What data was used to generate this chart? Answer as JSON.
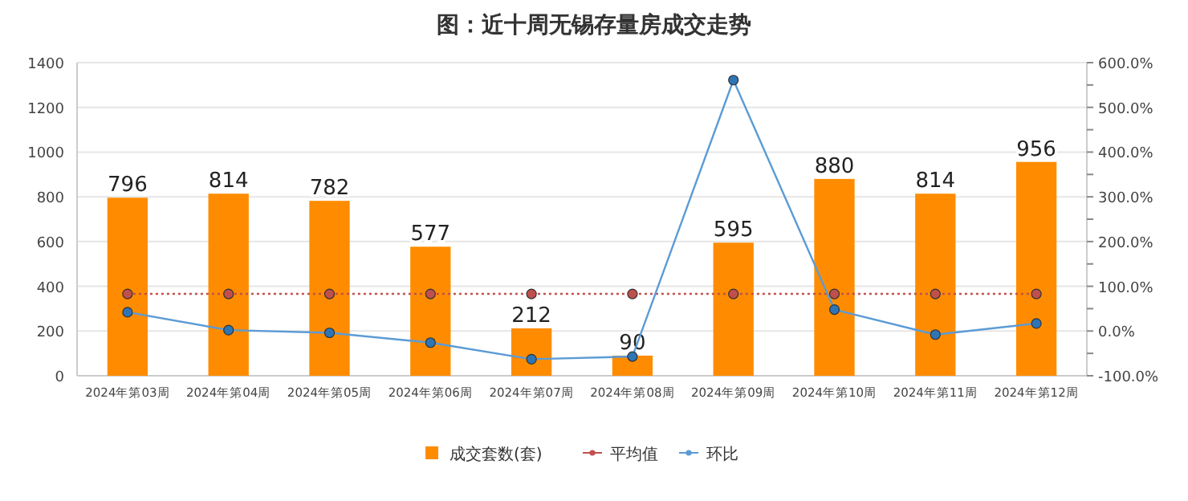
{
  "chart_data": {
    "type": "bar",
    "title": "图：近十周无锡存量房成交走势",
    "categories": [
      "2024年第03周",
      "2024年第04周",
      "2024年第05周",
      "2024年第06周",
      "2024年第07周",
      "2024年第08周",
      "2024年第09周",
      "2024年第10周",
      "2024年第11周",
      "2024年第12周"
    ],
    "series": [
      {
        "name": "成交套数(套)",
        "color": "#ff8c00",
        "values": [
          796,
          814,
          782,
          577,
          212,
          90,
          595,
          880,
          814,
          956
        ],
        "value_labels": [
          "796",
          "814",
          "782",
          "577",
          "212",
          "90",
          "595",
          "880",
          "814",
          "956"
        ]
      },
      {
        "name": "平均值",
        "type": "line",
        "axis": "y2",
        "color": "#c0504d",
        "line_style": "dotted",
        "marker": "circle",
        "values": [
          83,
          83,
          83,
          83,
          83,
          83,
          83,
          83,
          83,
          83
        ]
      },
      {
        "name": "环比",
        "type": "line",
        "axis": "y2",
        "color": "#5b9bd5",
        "line_style": "solid",
        "marker": "circle",
        "values": [
          42,
          2,
          -4,
          -26,
          -63,
          -57,
          561,
          48,
          -8,
          17
        ]
      }
    ],
    "ylim": [
      0,
      1400
    ],
    "yticks": [
      0,
      200,
      400,
      600,
      800,
      1000,
      1200,
      1400
    ],
    "y2lim": [
      -100,
      600
    ],
    "y2ticks": [
      {
        "value": -100,
        "label": "-100.0%"
      },
      {
        "value": -50,
        "label": null
      },
      {
        "value": 0,
        "label": "0.0%"
      },
      {
        "value": 50,
        "label": null
      },
      {
        "value": 100,
        "label": "100.0%"
      },
      {
        "value": 150,
        "label": null
      },
      {
        "value": 200,
        "label": "200.0%"
      },
      {
        "value": 250,
        "label": null
      },
      {
        "value": 300,
        "label": "300.0%"
      },
      {
        "value": 350,
        "label": null
      },
      {
        "value": 400,
        "label": "400.0%"
      },
      {
        "value": 450,
        "label": null
      },
      {
        "value": 500,
        "label": "500.0%"
      },
      {
        "value": 550,
        "label": null
      },
      {
        "value": 600,
        "label": "600.0%"
      }
    ],
    "grid": "y",
    "legend": "bottom"
  }
}
